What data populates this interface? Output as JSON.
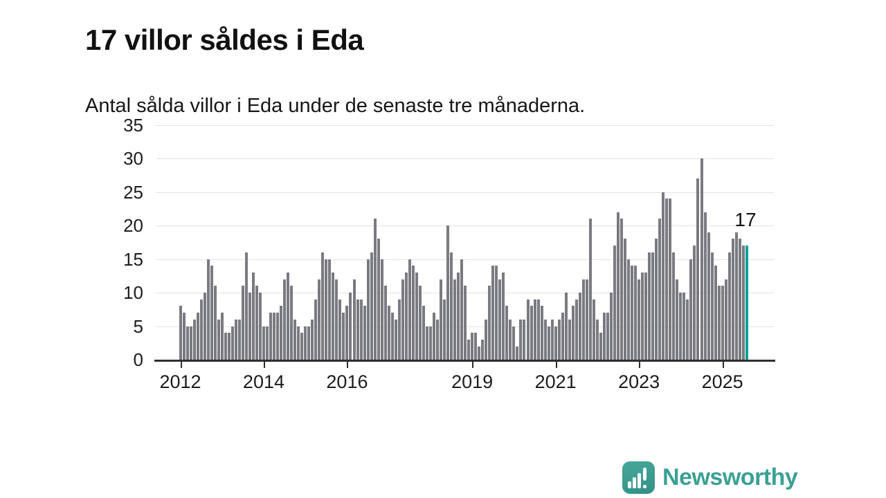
{
  "title": "17 villor såldes i Eda",
  "subtitle": "Antal sålda villor i Eda under de senaste tre månaderna.",
  "annotation": {
    "label": "17"
  },
  "branding": {
    "name": "Newsworthy",
    "icon": "bar-chart-exclamation-icon"
  },
  "colors": {
    "bar": "#7a7a82",
    "highlight": "#00a296",
    "grid": "#e2e2e2",
    "axis": "#2e2e2e",
    "brand": "#3ba095"
  },
  "chart_data": {
    "type": "bar",
    "title": "17 villor såldes i Eda",
    "subtitle": "Antal sålda villor i Eda under de senaste tre månaderna.",
    "unit": "antal sålda villor (rullande tre månader)",
    "x_start": "2012-01",
    "x_end": "2025-08",
    "ylim": [
      0,
      35
    ],
    "yticks": [
      0,
      5,
      10,
      15,
      20,
      25,
      30,
      35
    ],
    "xticks": [
      2012,
      2014,
      2016,
      2019,
      2021,
      2023,
      2025
    ],
    "grid": "horizontal",
    "legend": "none",
    "highlight_last": true,
    "last_value_label": "17",
    "series": [
      {
        "year": 2012,
        "values": [
          8,
          7,
          5,
          5,
          6,
          7,
          9,
          10,
          15,
          14,
          11,
          6
        ]
      },
      {
        "year": 2013,
        "values": [
          7,
          4,
          4,
          5,
          6,
          6,
          11,
          16,
          10,
          13,
          11,
          10
        ]
      },
      {
        "year": 2014,
        "values": [
          5,
          5,
          7,
          7,
          7,
          8,
          12,
          13,
          11,
          6,
          5,
          4
        ]
      },
      {
        "year": 2015,
        "values": [
          5,
          5,
          6,
          9,
          12,
          16,
          15,
          15,
          13,
          12,
          9,
          7
        ]
      },
      {
        "year": 2016,
        "values": [
          8,
          10,
          12,
          9,
          9,
          8,
          15,
          16,
          21,
          18,
          15,
          11
        ]
      },
      {
        "year": 2017,
        "values": [
          8,
          7,
          6,
          9,
          12,
          13,
          15,
          14,
          13,
          11,
          8,
          5
        ]
      },
      {
        "year": 2018,
        "values": [
          5,
          7,
          6,
          12,
          9,
          20,
          16,
          12,
          13,
          15,
          11,
          3
        ]
      },
      {
        "year": 2019,
        "values": [
          4,
          4,
          2,
          3,
          6,
          11,
          14,
          14,
          12,
          13,
          8,
          6
        ]
      },
      {
        "year": 2020,
        "values": [
          5,
          2,
          6,
          6,
          9,
          8,
          9,
          9,
          8,
          6,
          5,
          6
        ]
      },
      {
        "year": 2021,
        "values": [
          5,
          6,
          7,
          10,
          6,
          8,
          9,
          10,
          12,
          12,
          21,
          9
        ]
      },
      {
        "year": 2022,
        "values": [
          6,
          4,
          7,
          7,
          10,
          17,
          22,
          21,
          18,
          15,
          14,
          14
        ]
      },
      {
        "year": 2023,
        "values": [
          12,
          13,
          13,
          16,
          16,
          18,
          21,
          25,
          24,
          24,
          16,
          12
        ]
      },
      {
        "year": 2024,
        "values": [
          10,
          10,
          9,
          15,
          17,
          27,
          30,
          22,
          19,
          16,
          14,
          11
        ]
      },
      {
        "year": 2025,
        "values": [
          11,
          12,
          16,
          18,
          19,
          18,
          17,
          17
        ]
      }
    ]
  }
}
